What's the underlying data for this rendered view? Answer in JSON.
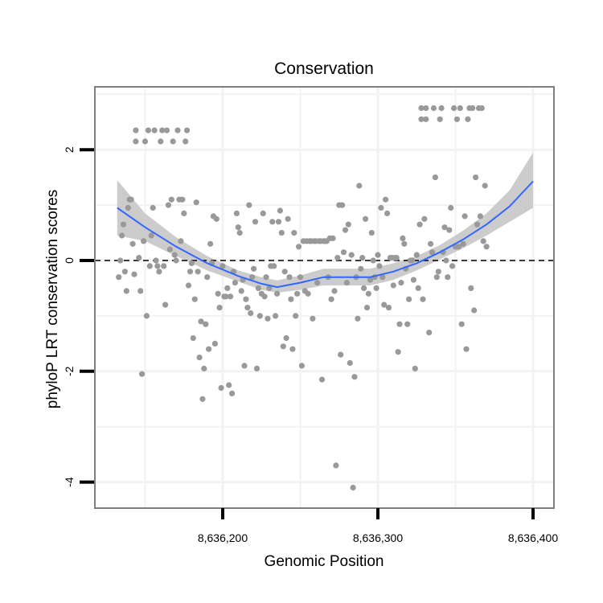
{
  "chart_data": {
    "type": "scatter",
    "title": "Conservation",
    "xlabel": "Genomic Position",
    "ylabel": "phyloP LRT conservation scores",
    "x_ticks": [
      {
        "value": 8636200,
        "label": "8,636,200"
      },
      {
        "value": 8636300,
        "label": "8,636,300"
      },
      {
        "value": 8636400,
        "label": "8,636,400"
      }
    ],
    "y_ticks": [
      {
        "value": 2,
        "label": "2"
      },
      {
        "value": 0,
        "label": "0"
      },
      {
        "value": -2,
        "label": "-2"
      },
      {
        "value": -4,
        "label": "-4"
      }
    ],
    "xlim": [
      8636120,
      8636415
    ],
    "ylim": [
      -4.45,
      3.15
    ],
    "grid": true,
    "reference_line": {
      "y": 0,
      "style": "dashed"
    },
    "colors": {
      "points": "#999999",
      "smooth_line": "#3366FF",
      "confidence_band": "#CCCCCC",
      "panel_border": "#7f7f7f",
      "grid": "#f2f2f2"
    },
    "smooth": {
      "x": [
        8636132,
        8636150,
        8636170,
        8636190,
        8636210,
        8636225,
        8636235,
        8636250,
        8636265,
        8636280,
        8636295,
        8636310,
        8636325,
        8636340,
        8636355,
        8636370,
        8636385,
        8636400
      ],
      "y": [
        0.95,
        0.6,
        0.25,
        -0.05,
        -0.28,
        -0.42,
        -0.48,
        -0.4,
        -0.3,
        -0.3,
        -0.3,
        -0.2,
        -0.05,
        0.15,
        0.38,
        0.65,
        0.98,
        1.43
      ],
      "lower": [
        0.45,
        0.35,
        0.08,
        -0.18,
        -0.38,
        -0.53,
        -0.58,
        -0.53,
        -0.45,
        -0.45,
        -0.45,
        -0.35,
        -0.18,
        0.02,
        0.22,
        0.45,
        0.7,
        0.95
      ],
      "upper": [
        1.45,
        0.85,
        0.42,
        0.08,
        -0.18,
        -0.3,
        -0.36,
        -0.27,
        -0.15,
        -0.15,
        -0.15,
        -0.05,
        0.08,
        0.28,
        0.54,
        0.85,
        1.27,
        1.95
      ]
    },
    "points": [
      [
        8636133,
        -0.3
      ],
      [
        8636134,
        0.0
      ],
      [
        8636135,
        0.45
      ],
      [
        8636136,
        0.65
      ],
      [
        8636137,
        -0.2
      ],
      [
        8636138,
        -0.55
      ],
      [
        8636139,
        0.95
      ],
      [
        8636140,
        1.1
      ],
      [
        8636141,
        1.1
      ],
      [
        8636142,
        0.3
      ],
      [
        8636143,
        -0.25
      ],
      [
        8636144,
        2.15
      ],
      [
        8636144,
        2.35
      ],
      [
        8636146,
        0.05
      ],
      [
        8636147,
        -0.55
      ],
      [
        8636148,
        -2.05
      ],
      [
        8636149,
        0.35
      ],
      [
        8636150,
        2.15
      ],
      [
        8636151,
        -1.0
      ],
      [
        8636152,
        2.35
      ],
      [
        8636153,
        -0.1
      ],
      [
        8636154,
        0.45
      ],
      [
        8636155,
        0.95
      ],
      [
        8636156,
        2.35
      ],
      [
        8636157,
        0.0
      ],
      [
        8636158,
        -0.1
      ],
      [
        8636159,
        -0.2
      ],
      [
        8636160,
        2.15
      ],
      [
        8636161,
        2.35
      ],
      [
        8636162,
        -0.1
      ],
      [
        8636163,
        -0.8
      ],
      [
        8636164,
        2.35
      ],
      [
        8636165,
        1.0
      ],
      [
        8636166,
        0.2
      ],
      [
        8636167,
        1.1
      ],
      [
        8636168,
        2.15
      ],
      [
        8636169,
        0.1
      ],
      [
        8636170,
        0.0
      ],
      [
        8636171,
        2.35
      ],
      [
        8636172,
        1.1
      ],
      [
        8636173,
        0.35
      ],
      [
        8636174,
        1.1
      ],
      [
        8636175,
        0.85
      ],
      [
        8636176,
        2.15
      ],
      [
        8636177,
        2.35
      ],
      [
        8636178,
        -0.45
      ],
      [
        8636179,
        -0.2
      ],
      [
        8636180,
        -0.05
      ],
      [
        8636181,
        -1.4
      ],
      [
        8636182,
        -0.7
      ],
      [
        8636183,
        1.05
      ],
      [
        8636184,
        -0.2
      ],
      [
        8636185,
        -1.75
      ],
      [
        8636186,
        -1.1
      ],
      [
        8636187,
        -2.5
      ],
      [
        8636188,
        -1.95
      ],
      [
        8636189,
        -1.15
      ],
      [
        8636190,
        -0.3
      ],
      [
        8636191,
        -1.6
      ],
      [
        8636192,
        0.3
      ],
      [
        8636193,
        -0.05
      ],
      [
        8636194,
        0.8
      ],
      [
        8636195,
        -1.5
      ],
      [
        8636196,
        0.75
      ],
      [
        8636197,
        -0.6
      ],
      [
        8636198,
        -0.85
      ],
      [
        8636199,
        -2.3
      ],
      [
        8636200,
        -0.1
      ],
      [
        8636201,
        -0.65
      ],
      [
        8636202,
        -0.65
      ],
      [
        8636203,
        -0.5
      ],
      [
        8636204,
        -2.25
      ],
      [
        8636205,
        -0.65
      ],
      [
        8636206,
        -2.4
      ],
      [
        8636207,
        -0.2
      ],
      [
        8636208,
        -0.4
      ],
      [
        8636209,
        0.85
      ],
      [
        8636210,
        0.6
      ],
      [
        8636211,
        0.5
      ],
      [
        8636212,
        -0.55
      ],
      [
        8636213,
        -0.35
      ],
      [
        8636214,
        -1.9
      ],
      [
        8636215,
        -0.7
      ],
      [
        8636216,
        -0.85
      ],
      [
        8636217,
        1.0
      ],
      [
        8636218,
        -0.95
      ],
      [
        8636219,
        -0.3
      ],
      [
        8636220,
        -0.15
      ],
      [
        8636221,
        0.7
      ],
      [
        8636222,
        -1.95
      ],
      [
        8636223,
        -0.5
      ],
      [
        8636224,
        -1.0
      ],
      [
        8636225,
        -0.6
      ],
      [
        8636226,
        0.85
      ],
      [
        8636227,
        -0.65
      ],
      [
        8636228,
        -0.3
      ],
      [
        8636229,
        -1.05
      ],
      [
        8636230,
        -0.5
      ],
      [
        8636231,
        -0.1
      ],
      [
        8636232,
        0.7
      ],
      [
        8636233,
        -0.1
      ],
      [
        8636234,
        -1.0
      ],
      [
        8636235,
        -0.6
      ],
      [
        8636236,
        0.7
      ],
      [
        8636237,
        0.9
      ],
      [
        8636238,
        0.5
      ],
      [
        8636239,
        -1.55
      ],
      [
        8636240,
        -0.2
      ],
      [
        8636241,
        -1.4
      ],
      [
        8636242,
        0.75
      ],
      [
        8636243,
        -0.3
      ],
      [
        8636244,
        -0.7
      ],
      [
        8636245,
        -1.6
      ],
      [
        8636246,
        0.5
      ],
      [
        8636247,
        -1.0
      ],
      [
        8636248,
        -0.6
      ],
      [
        8636249,
        0.25
      ],
      [
        8636250,
        -0.3
      ],
      [
        8636251,
        -1.9
      ],
      [
        8636252,
        0.35
      ],
      [
        8636253,
        -0.55
      ],
      [
        8636254,
        0.35
      ],
      [
        8636255,
        -0.6
      ],
      [
        8636256,
        0.35
      ],
      [
        8636257,
        0.35
      ],
      [
        8636258,
        -1.05
      ],
      [
        8636259,
        0.35
      ],
      [
        8636260,
        0.35
      ],
      [
        8636261,
        -0.4
      ],
      [
        8636262,
        0.35
      ],
      [
        8636263,
        0.35
      ],
      [
        8636264,
        -2.15
      ],
      [
        8636265,
        0.35
      ],
      [
        8636266,
        0.35
      ],
      [
        8636267,
        0.35
      ],
      [
        8636268,
        -0.3
      ],
      [
        8636269,
        0.4
      ],
      [
        8636270,
        -0.7
      ],
      [
        8636271,
        0.4
      ],
      [
        8636272,
        -0.55
      ],
      [
        8636273,
        -3.7
      ],
      [
        8636274,
        0.05
      ],
      [
        8636275,
        1.0
      ],
      [
        8636276,
        -1.7
      ],
      [
        8636277,
        1.0
      ],
      [
        8636278,
        0.15
      ],
      [
        8636279,
        0.55
      ],
      [
        8636280,
        -0.4
      ],
      [
        8636281,
        0.65
      ],
      [
        8636282,
        -1.85
      ],
      [
        8636283,
        0.1
      ],
      [
        8636284,
        -4.1
      ],
      [
        8636285,
        -2.1
      ],
      [
        8636286,
        -0.3
      ],
      [
        8636287,
        -1.05
      ],
      [
        8636288,
        1.35
      ],
      [
        8636289,
        -0.15
      ],
      [
        8636290,
        0.05
      ],
      [
        8636291,
        -0.5
      ],
      [
        8636292,
        0.75
      ],
      [
        8636293,
        -0.85
      ],
      [
        8636294,
        -0.6
      ],
      [
        8636295,
        -0.35
      ],
      [
        8636296,
        0.5
      ],
      [
        8636297,
        0.0
      ],
      [
        8636298,
        -0.3
      ],
      [
        8636299,
        -0.5
      ],
      [
        8636300,
        0.1
      ],
      [
        8636301,
        -0.1
      ],
      [
        8636302,
        0.95
      ],
      [
        8636303,
        -0.3
      ],
      [
        8636304,
        -0.8
      ],
      [
        8636305,
        1.1
      ],
      [
        8636306,
        0.85
      ],
      [
        8636307,
        -0.85
      ],
      [
        8636308,
        0.05
      ],
      [
        8636309,
        0.05
      ],
      [
        8636310,
        -0.45
      ],
      [
        8636311,
        0.05
      ],
      [
        8636312,
        0.05
      ],
      [
        8636313,
        -1.65
      ],
      [
        8636314,
        -1.15
      ],
      [
        8636315,
        -0.4
      ],
      [
        8636316,
        0.4
      ],
      [
        8636317,
        0.3
      ],
      [
        8636318,
        -0.15
      ],
      [
        8636319,
        -1.15
      ],
      [
        8636320,
        -0.7
      ],
      [
        8636321,
        0.0
      ],
      [
        8636322,
        0.0
      ],
      [
        8636323,
        -0.35
      ],
      [
        8636324,
        -1.95
      ],
      [
        8636325,
        0.1
      ],
      [
        8636326,
        -0.5
      ],
      [
        8636327,
        0.65
      ],
      [
        8636328,
        2.75
      ],
      [
        8636328,
        2.55
      ],
      [
        8636329,
        -0.7
      ],
      [
        8636330,
        0.75
      ],
      [
        8636331,
        2.55
      ],
      [
        8636331,
        2.75
      ],
      [
        8636333,
        -1.3
      ],
      [
        8636334,
        0.3
      ],
      [
        8636335,
        0.15
      ],
      [
        8636336,
        2.75
      ],
      [
        8636337,
        1.5
      ],
      [
        8636338,
        -0.3
      ],
      [
        8636339,
        -0.2
      ],
      [
        8636340,
        2.55
      ],
      [
        8636341,
        2.75
      ],
      [
        8636342,
        0.15
      ],
      [
        8636343,
        0.6
      ],
      [
        8636344,
        0.0
      ],
      [
        8636345,
        -0.3
      ],
      [
        8636346,
        0.55
      ],
      [
        8636347,
        0.95
      ],
      [
        8636348,
        -0.1
      ],
      [
        8636349,
        2.75
      ],
      [
        8636350,
        0.25
      ],
      [
        8636351,
        2.55
      ],
      [
        8636352,
        0.25
      ],
      [
        8636353,
        2.75
      ],
      [
        8636354,
        -1.15
      ],
      [
        8636355,
        0.3
      ],
      [
        8636356,
        0.8
      ],
      [
        8636357,
        -1.6
      ],
      [
        8636358,
        2.55
      ],
      [
        8636359,
        2.75
      ],
      [
        8636360,
        -0.5
      ],
      [
        8636361,
        2.75
      ],
      [
        8636362,
        -0.9
      ],
      [
        8636363,
        1.5
      ],
      [
        8636364,
        0.65
      ],
      [
        8636365,
        2.75
      ],
      [
        8636366,
        0.8
      ],
      [
        8636367,
        2.75
      ],
      [
        8636368,
        0.35
      ],
      [
        8636369,
        1.35
      ],
      [
        8636370,
        0.25
      ]
    ]
  }
}
